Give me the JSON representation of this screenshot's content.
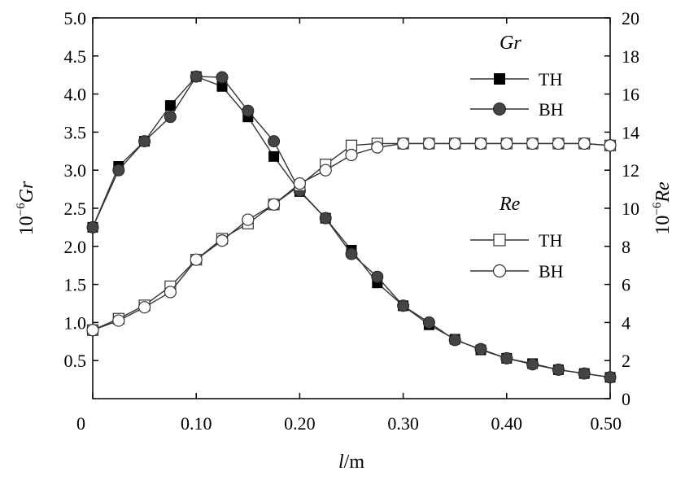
{
  "chart_data": {
    "type": "line",
    "xlabel": {
      "var": "l",
      "unit": "/m"
    },
    "ylabel_left": {
      "prefix": "10",
      "exp": "−6",
      "var": "Gr"
    },
    "ylabel_right": {
      "prefix": "10",
      "exp": "−6",
      "var": "Re"
    },
    "xlim": [
      0,
      0.5
    ],
    "ylim_left": [
      0,
      5.0
    ],
    "ylim_right": [
      0,
      20
    ],
    "x_ticks": [
      "0",
      "0.10",
      "0.20",
      "0.30",
      "0.40",
      "0.50"
    ],
    "x_tick_values": [
      0,
      0.1,
      0.2,
      0.3,
      0.4,
      0.5
    ],
    "y_left_ticks": [
      "0.5",
      "1.0",
      "1.5",
      "2.0",
      "2.5",
      "3.0",
      "3.5",
      "4.0",
      "4.5",
      "5.0"
    ],
    "y_left_tick_values": [
      0.5,
      1.0,
      1.5,
      2.0,
      2.5,
      3.0,
      3.5,
      4.0,
      4.5,
      5.0
    ],
    "y_right_ticks": [
      "0",
      "2",
      "4",
      "6",
      "8",
      "10",
      "12",
      "14",
      "16",
      "18",
      "20"
    ],
    "y_right_tick_values": [
      0,
      2,
      4,
      6,
      8,
      10,
      12,
      14,
      16,
      18,
      20
    ],
    "legend_groups": [
      {
        "title": "Gr",
        "entries": [
          "TH",
          "BH"
        ]
      },
      {
        "title": "Re",
        "entries": [
          "TH",
          "BH"
        ]
      }
    ],
    "series": [
      {
        "name": "TH",
        "group": "Gr",
        "axis": "left",
        "marker": "filled-square",
        "x": [
          0,
          0.025,
          0.05,
          0.075,
          0.1,
          0.125,
          0.15,
          0.175,
          0.2,
          0.225,
          0.25,
          0.275,
          0.3,
          0.325,
          0.35,
          0.375,
          0.4,
          0.425,
          0.45,
          0.475,
          0.5
        ],
        "y": [
          2.25,
          3.05,
          3.38,
          3.85,
          4.23,
          4.1,
          3.7,
          3.18,
          2.72,
          2.37,
          1.95,
          1.52,
          1.22,
          0.97,
          0.78,
          0.64,
          0.53,
          0.46,
          0.38,
          0.33,
          0.28
        ]
      },
      {
        "name": "BH",
        "group": "Gr",
        "axis": "left",
        "marker": "filled-circle",
        "x": [
          0,
          0.025,
          0.05,
          0.075,
          0.1,
          0.125,
          0.15,
          0.175,
          0.2,
          0.225,
          0.25,
          0.275,
          0.3,
          0.325,
          0.35,
          0.375,
          0.4,
          0.425,
          0.45,
          0.475,
          0.5
        ],
        "y": [
          2.25,
          3.0,
          3.38,
          3.7,
          4.23,
          4.22,
          3.78,
          3.38,
          2.73,
          2.37,
          1.9,
          1.6,
          1.22,
          1.0,
          0.77,
          0.65,
          0.53,
          0.45,
          0.38,
          0.33,
          0.28
        ]
      },
      {
        "name": "TH",
        "group": "Re",
        "axis": "right",
        "marker": "open-square",
        "x": [
          0,
          0.025,
          0.05,
          0.075,
          0.1,
          0.125,
          0.15,
          0.175,
          0.2,
          0.225,
          0.25,
          0.275,
          0.3,
          0.325,
          0.35,
          0.375,
          0.4,
          0.425,
          0.45,
          0.475,
          0.5
        ],
        "y": [
          3.6,
          4.2,
          4.9,
          5.9,
          7.3,
          8.4,
          9.2,
          10.2,
          11.2,
          12.3,
          13.3,
          13.4,
          13.4,
          13.4,
          13.4,
          13.4,
          13.4,
          13.4,
          13.4,
          13.4,
          13.3
        ]
      },
      {
        "name": "BH",
        "group": "Re",
        "axis": "right",
        "marker": "open-circle",
        "x": [
          0,
          0.025,
          0.05,
          0.075,
          0.1,
          0.125,
          0.15,
          0.175,
          0.2,
          0.225,
          0.25,
          0.275,
          0.3,
          0.325,
          0.35,
          0.375,
          0.4,
          0.425,
          0.45,
          0.475,
          0.5
        ],
        "y": [
          3.6,
          4.1,
          4.8,
          5.6,
          7.3,
          8.3,
          9.4,
          10.2,
          11.3,
          12.0,
          12.8,
          13.2,
          13.4,
          13.4,
          13.4,
          13.4,
          13.4,
          13.4,
          13.4,
          13.4,
          13.3
        ]
      }
    ]
  }
}
